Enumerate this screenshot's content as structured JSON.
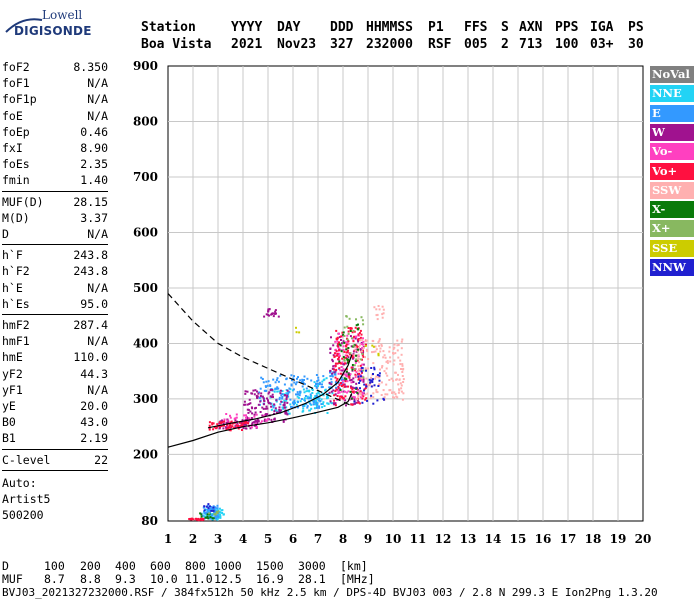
{
  "logo": {
    "line1": "Lowell",
    "line2": "DIGISONDE"
  },
  "header": {
    "labels": [
      "Station",
      "YYYY",
      "DAY",
      "DDD",
      "HHMMSS",
      "P1",
      "FFS",
      "S",
      "AXN",
      "PPS",
      "IGA",
      "PS"
    ],
    "values": [
      "Boa Vista",
      "2021",
      "Nov23",
      "327",
      "232000",
      "RSF",
      "005",
      "2",
      "713",
      "100",
      "03+",
      "30"
    ]
  },
  "params": {
    "group1": [
      {
        "k": "foF2",
        "v": "8.350"
      },
      {
        "k": "foF1",
        "v": "N/A"
      },
      {
        "k": "foF1p",
        "v": "N/A"
      },
      {
        "k": "foE",
        "v": "N/A"
      },
      {
        "k": "foEp",
        "v": "0.46"
      },
      {
        "k": "fxI",
        "v": "8.90"
      },
      {
        "k": "foEs",
        "v": "2.35"
      },
      {
        "k": "fmin",
        "v": "1.40"
      }
    ],
    "group2": [
      {
        "k": "MUF(D)",
        "v": "28.15"
      },
      {
        "k": "M(D)",
        "v": "3.37"
      },
      {
        "k": "D",
        "v": "N/A"
      }
    ],
    "group3": [
      {
        "k": "h`F",
        "v": "243.8"
      },
      {
        "k": "h`F2",
        "v": "243.8"
      },
      {
        "k": "h`E",
        "v": "N/A"
      },
      {
        "k": "h`Es",
        "v": "95.0"
      }
    ],
    "group4": [
      {
        "k": "hmF2",
        "v": "287.4"
      },
      {
        "k": "hmF1",
        "v": "N/A"
      },
      {
        "k": "hmE",
        "v": "110.0"
      },
      {
        "k": "yF2",
        "v": "44.3"
      },
      {
        "k": "yF1",
        "v": "N/A"
      },
      {
        "k": "yE",
        "v": "20.0"
      },
      {
        "k": "B0",
        "v": "43.0"
      },
      {
        "k": "B1",
        "v": "2.19"
      }
    ],
    "clevel": {
      "k": "C-level",
      "v": "22"
    },
    "auto": [
      "Auto:",
      "Artist5",
      "500200"
    ]
  },
  "legend": [
    {
      "label": "NoVal",
      "bg": "#808080",
      "fg": "#ffffff"
    },
    {
      "label": "NNE",
      "bg": "#22d3f5",
      "fg": "#ffffff"
    },
    {
      "label": "E",
      "bg": "#3399ff",
      "fg": "#ffffff"
    },
    {
      "label": "W",
      "bg": "#a0128f",
      "fg": "#ffffff"
    },
    {
      "label": "Vo-",
      "bg": "#ff40c0",
      "fg": "#ffffff"
    },
    {
      "label": "Vo+",
      "bg": "#ff1040",
      "fg": "#ffffff"
    },
    {
      "label": "SSW",
      "bg": "#ffb0b0",
      "fg": "#ffffff"
    },
    {
      "label": "X-",
      "bg": "#0a7a0a",
      "fg": "#ffffff"
    },
    {
      "label": "X+",
      "bg": "#88b860",
      "fg": "#ffffff"
    },
    {
      "label": "SSE",
      "bg": "#cccc00",
      "fg": "#ffffff"
    },
    {
      "label": "NNW",
      "bg": "#2020d0",
      "fg": "#ffffff"
    }
  ],
  "footer": {
    "d_row": [
      "D",
      "100",
      "200",
      "400",
      "600",
      "800",
      "1000",
      "1500",
      "3000",
      "[km]"
    ],
    "muf_row": [
      "MUF",
      "8.7",
      "8.8",
      "9.3",
      "10.0",
      "11.0",
      "12.5",
      "16.9",
      "28.1",
      "[MHz]"
    ],
    "file_line": "BVJ03_2021327232000.RSF / 384fx512h 50 kHz 2.5 km / DPS-4D BVJ03 003 / 2.8 N 299.3 E Ion2Png 1.3.20"
  },
  "chart_data": {
    "type": "scatter",
    "title": "",
    "xlabel": "",
    "ylabel": "",
    "xlim": [
      1,
      20
    ],
    "ylim": [
      80,
      900
    ],
    "x_ticks": [
      1,
      2,
      3,
      4,
      5,
      6,
      7,
      8,
      9,
      10,
      11,
      12,
      13,
      14,
      15,
      16,
      17,
      18,
      19,
      20
    ],
    "y_ticks": [
      80,
      200,
      300,
      400,
      500,
      600,
      700,
      800,
      900
    ],
    "grid": true,
    "series": [
      {
        "name": "NNE",
        "color": "#22d3f5",
        "clusters": [
          {
            "x": [
              2.4,
              3.2
            ],
            "y": [
              84,
              104
            ],
            "n": 60
          },
          {
            "x": [
              5.0,
              7.4
            ],
            "y": [
              275,
              320
            ],
            "n": 110
          },
          {
            "x": [
              6.8,
              7.6
            ],
            "y": [
              290,
              340
            ],
            "n": 30
          }
        ]
      },
      {
        "name": "E",
        "color": "#3399ff",
        "clusters": [
          {
            "x": [
              2.3,
              3.0
            ],
            "y": [
              86,
              110
            ],
            "n": 50
          },
          {
            "x": [
              4.6,
              7.2
            ],
            "y": [
              285,
              345
            ],
            "n": 140
          },
          {
            "x": [
              7.4,
              8.0
            ],
            "y": [
              320,
              360
            ],
            "n": 30
          }
        ]
      },
      {
        "name": "W",
        "color": "#a0128f",
        "clusters": [
          {
            "x": [
              3.0,
              4.6
            ],
            "y": [
              248,
              265
            ],
            "n": 70
          },
          {
            "x": [
              4.0,
              5.8
            ],
            "y": [
              260,
              320
            ],
            "n": 120
          },
          {
            "x": [
              7.4,
              8.8
            ],
            "y": [
              290,
              420
            ],
            "n": 120
          },
          {
            "x": [
              4.8,
              5.4
            ],
            "y": [
              450,
              465
            ],
            "n": 20
          }
        ]
      },
      {
        "name": "Vo-",
        "color": "#ff40c0",
        "clusters": [
          {
            "x": [
              7.6,
              8.8
            ],
            "y": [
              300,
              420
            ],
            "n": 100
          },
          {
            "x": [
              3.2,
              5.0
            ],
            "y": [
              250,
              275
            ],
            "n": 40
          }
        ]
      },
      {
        "name": "Vo+",
        "color": "#ff1040",
        "clusters": [
          {
            "x": [
              2.6,
              4.2
            ],
            "y": [
              245,
              262
            ],
            "n": 60
          },
          {
            "x": [
              7.6,
              8.9
            ],
            "y": [
              290,
              430
            ],
            "n": 140
          },
          {
            "x": [
              1.8,
              2.4
            ],
            "y": [
              83,
              86
            ],
            "n": 25
          }
        ]
      },
      {
        "name": "SSW",
        "color": "#ffb0b0",
        "clusters": [
          {
            "x": [
              8.4,
              10.4
            ],
            "y": [
              300,
              410
            ],
            "n": 160
          },
          {
            "x": [
              9.2,
              9.6
            ],
            "y": [
              440,
              470
            ],
            "n": 12
          }
        ]
      },
      {
        "name": "X-",
        "color": "#0a7a0a",
        "clusters": [
          {
            "x": [
              7.8,
              8.6
            ],
            "y": [
              300,
              440
            ],
            "n": 35
          },
          {
            "x": [
              2.0,
              2.8
            ],
            "y": [
              86,
              96
            ],
            "n": 12
          }
        ]
      },
      {
        "name": "X+",
        "color": "#88b860",
        "clusters": [
          {
            "x": [
              8.0,
              8.8
            ],
            "y": [
              340,
              460
            ],
            "n": 25
          },
          {
            "x": [
              2.6,
              3.0
            ],
            "y": [
              92,
              100
            ],
            "n": 8
          }
        ]
      },
      {
        "name": "SSE",
        "color": "#cccc00",
        "clusters": [
          {
            "x": [
              8.8,
              9.4
            ],
            "y": [
              380,
              400
            ],
            "n": 6
          },
          {
            "x": [
              6.0,
              6.4
            ],
            "y": [
              420,
              430
            ],
            "n": 3
          }
        ]
      },
      {
        "name": "NNW",
        "color": "#2020d0",
        "clusters": [
          {
            "x": [
              8.4,
              9.6
            ],
            "y": [
              290,
              360
            ],
            "n": 40
          },
          {
            "x": [
              2.4,
              2.8
            ],
            "y": [
              100,
              120
            ],
            "n": 10
          }
        ]
      }
    ],
    "profile_solid": {
      "x": [
        1.0,
        2.0,
        3.0,
        4.0,
        5.0,
        6.0,
        7.0,
        7.8,
        8.2,
        8.35
      ],
      "y": [
        213,
        225,
        240,
        250,
        257,
        266,
        276,
        285,
        295,
        310
      ]
    },
    "profile_dashed": {
      "x": [
        1.0,
        1.5,
        2.0,
        2.5,
        3.0,
        4.0,
        5.0,
        6.0,
        7.0,
        8.0,
        8.35
      ],
      "y": [
        490,
        465,
        440,
        420,
        400,
        375,
        355,
        335,
        315,
        295,
        287.4
      ]
    },
    "trace_fit": {
      "x": [
        2.6,
        3.5,
        4.5,
        5.5,
        6.5,
        7.2,
        7.8,
        8.2,
        8.35
      ],
      "y": [
        248,
        256,
        264,
        275,
        292,
        308,
        330,
        360,
        380
      ]
    }
  }
}
